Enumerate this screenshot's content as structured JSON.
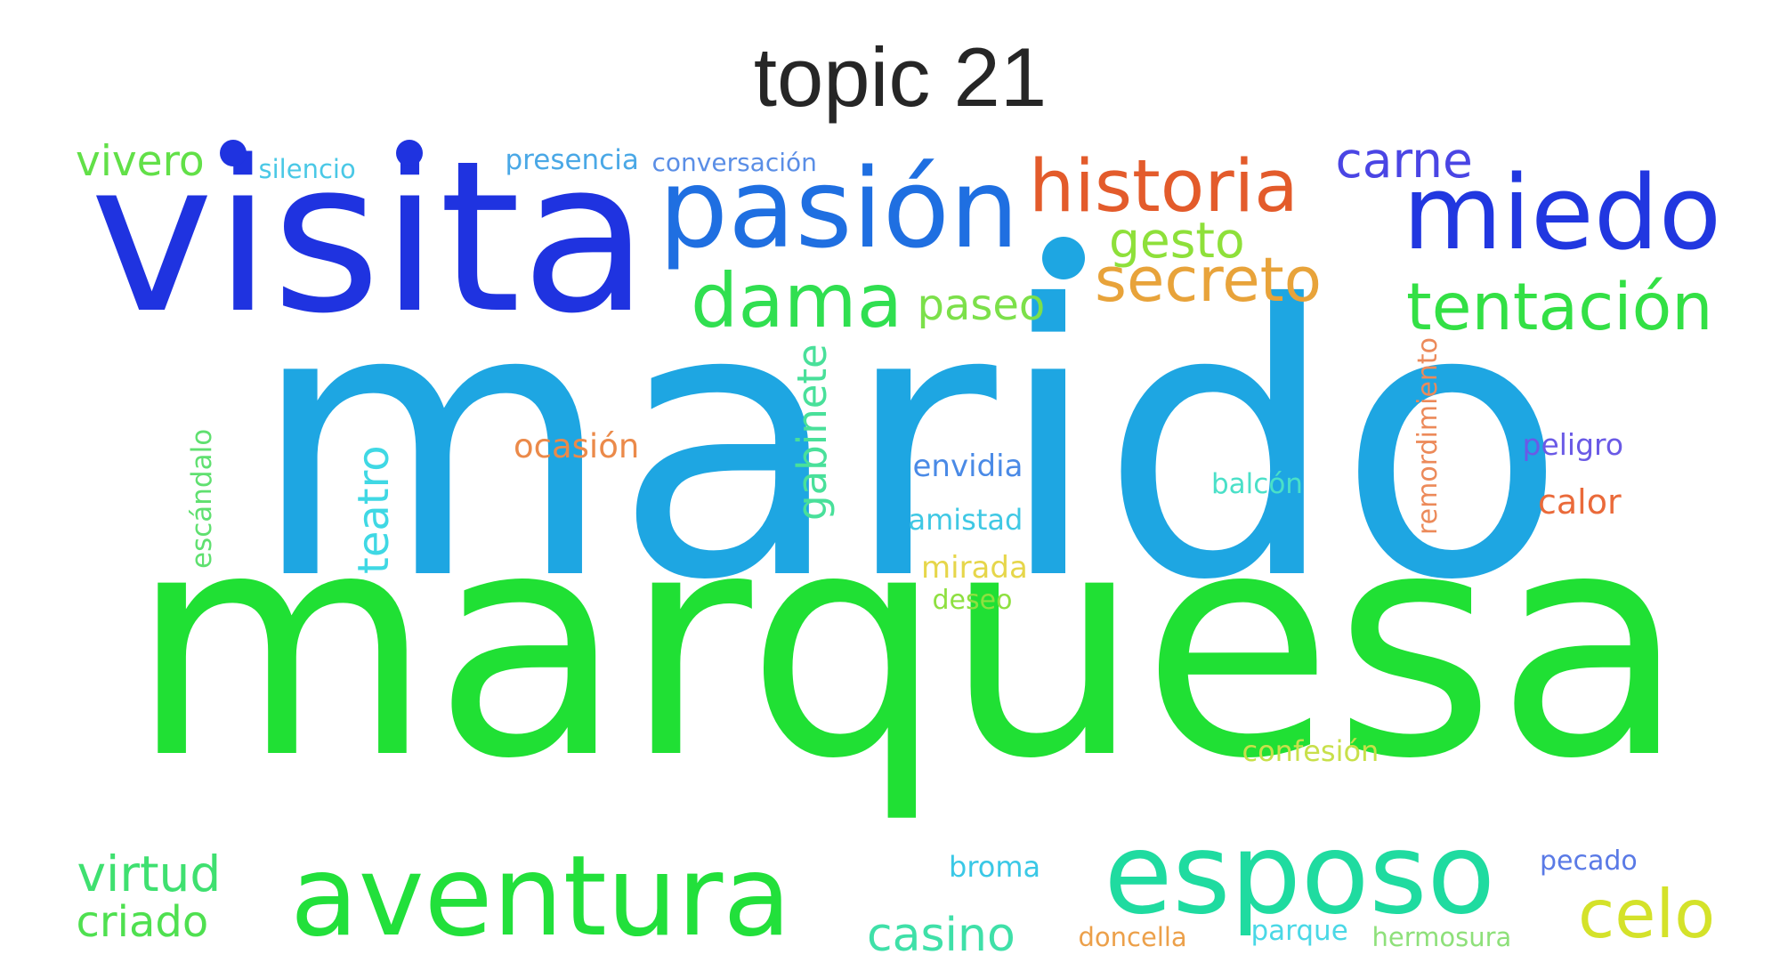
{
  "title": "topic 21",
  "words": [
    {
      "text": "marido",
      "color": "#1ea6e2"
    },
    {
      "text": "marquesa",
      "color": "#20e034"
    },
    {
      "text": "visita",
      "color": "#1f33e0"
    },
    {
      "text": "pasión",
      "color": "#1f6fe1"
    },
    {
      "text": "historia",
      "color": "#e35b2b"
    },
    {
      "text": "miedo",
      "color": "#2137e0"
    },
    {
      "text": "esposo",
      "color": "#1fdba0"
    },
    {
      "text": "aventura",
      "color": "#22e03b"
    },
    {
      "text": "dama",
      "color": "#30df50"
    },
    {
      "text": "secreto",
      "color": "#e8a33a"
    },
    {
      "text": "tentación",
      "color": "#33e045"
    },
    {
      "text": "celo",
      "color": "#d4e22a"
    },
    {
      "text": "carne",
      "color": "#4a45e4"
    },
    {
      "text": "gesto",
      "color": "#8ee03a"
    },
    {
      "text": "paseo",
      "color": "#7ce04a"
    },
    {
      "text": "vivero",
      "color": "#62e048"
    },
    {
      "text": "virtud",
      "color": "#3fe070"
    },
    {
      "text": "criado",
      "color": "#4fe050"
    },
    {
      "text": "casino",
      "color": "#3fe0a8"
    },
    {
      "text": "gabinete",
      "color": "#49e09a"
    },
    {
      "text": "teatro",
      "color": "#3fd8e4"
    },
    {
      "text": "ocasión",
      "color": "#eb8a4a"
    },
    {
      "text": "envidia",
      "color": "#4a8ae6"
    },
    {
      "text": "amistad",
      "color": "#3fc8e4"
    },
    {
      "text": "mirada",
      "color": "#e6d64a"
    },
    {
      "text": "deseo",
      "color": "#8ee040"
    },
    {
      "text": "balcón",
      "color": "#4ae0c8"
    },
    {
      "text": "remordimiento",
      "color": "#ec8a5a"
    },
    {
      "text": "peligro",
      "color": "#6a5ae6"
    },
    {
      "text": "calor",
      "color": "#ea6a3a"
    },
    {
      "text": "escándalo",
      "color": "#60e070"
    },
    {
      "text": "presencia",
      "color": "#4aa8e6"
    },
    {
      "text": "conversación",
      "color": "#5a8ee6"
    },
    {
      "text": "silencio",
      "color": "#4ac8e6"
    },
    {
      "text": "confesión",
      "color": "#c8e04a"
    },
    {
      "text": "broma",
      "color": "#3ac8e6"
    },
    {
      "text": "pecado",
      "color": "#5a7ae6"
    },
    {
      "text": "doncella",
      "color": "#eca04a"
    },
    {
      "text": "parque",
      "color": "#4ad8e6"
    },
    {
      "text": "hermosura",
      "color": "#8ee07a"
    }
  ]
}
